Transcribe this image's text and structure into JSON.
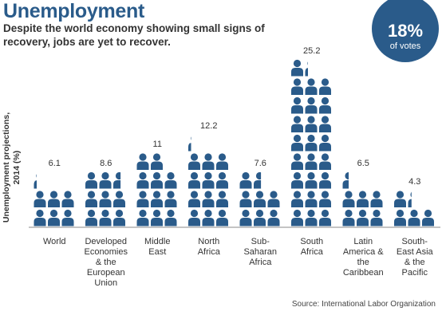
{
  "title": "Unemployment",
  "subtitle": "Despite the world economy showing small signs of recovery, jobs are yet to recover.",
  "badge": {
    "value": "18%",
    "label": "of votes"
  },
  "source": "Source: International Labor Organization",
  "colors": {
    "accent": "#2a5b8a",
    "icon": "#2a5b8a",
    "axis": "#888888"
  },
  "chart_data": {
    "type": "bar",
    "title": "",
    "ylabel": "Unemployment projections, 2014 (%)",
    "xlabel": "",
    "categories": [
      "World",
      "Developed Economies & the European Union",
      "Middle East",
      "North Africa",
      "Sub-Saharan Africa",
      "South Africa",
      "Latin America & the Caribbean",
      "South-East Asia & the Pacific"
    ],
    "category_lines": [
      [
        "World"
      ],
      [
        "Developed",
        "Economies",
        "& the",
        "European",
        "Union"
      ],
      [
        "Middle",
        "East"
      ],
      [
        "North",
        "Africa"
      ],
      [
        "Sub-",
        "Saharan",
        "Africa"
      ],
      [
        "South",
        "Africa"
      ],
      [
        "Latin",
        "America &",
        "the",
        "Caribbean"
      ],
      [
        "South-",
        "East Asia",
        "& the",
        "Pacific"
      ]
    ],
    "values": [
      6.1,
      8.6,
      11,
      12.2,
      7.6,
      25.2,
      6.5,
      4.3
    ],
    "value_labels": [
      "6.1",
      "8.6",
      "11",
      "12.2",
      "7.6",
      "25.2",
      "6.5",
      "4.3"
    ],
    "icon": "person-icon",
    "units_per_row": 3
  }
}
